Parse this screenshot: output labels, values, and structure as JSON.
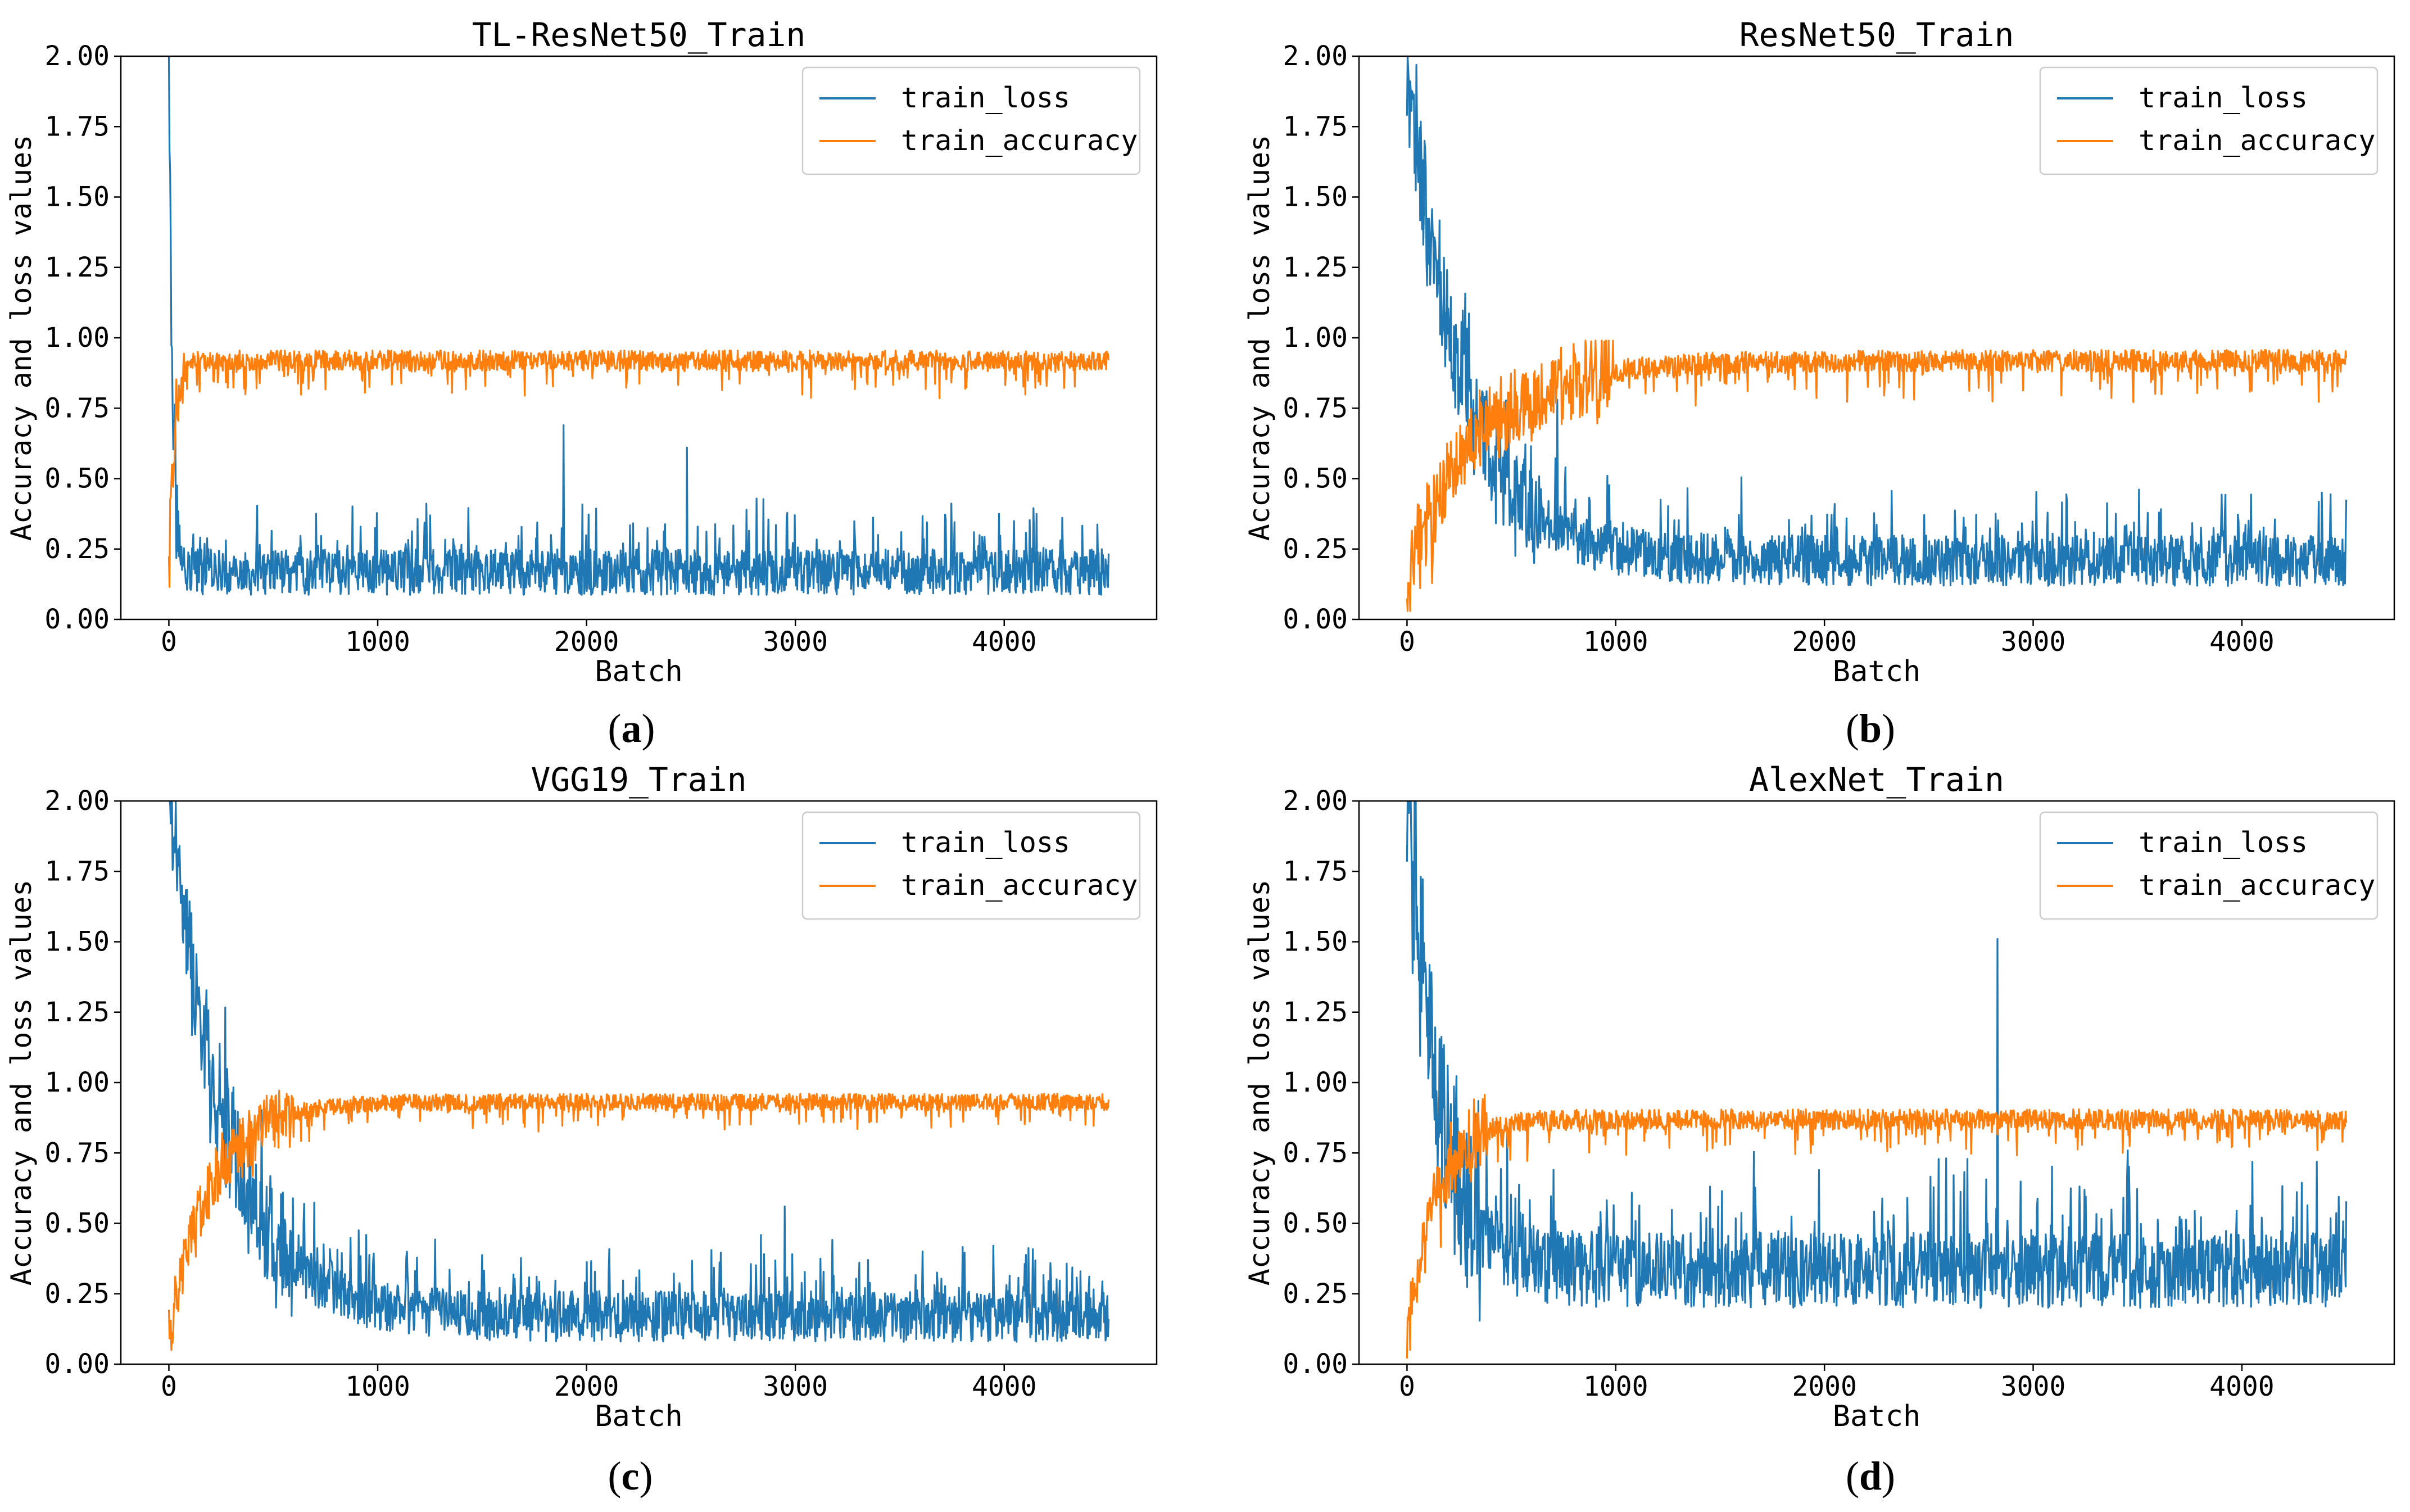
{
  "chart_data": [
    {
      "id": "a",
      "type": "line",
      "title": "TL-ResNet50_Train",
      "caption": "a",
      "xlabel": "Batch",
      "ylabel": "Accuracy and loss values",
      "xlim": [
        -230,
        4730
      ],
      "ylim": [
        0,
        2.0
      ],
      "xticks": [
        0,
        1000,
        2000,
        3000,
        4000
      ],
      "yticks": [
        0.0,
        0.25,
        0.5,
        0.75,
        1.0,
        1.25,
        1.5,
        1.75,
        2.0
      ],
      "legend_position": "top-right",
      "series": [
        {
          "name": "train_loss",
          "color": "#1f77b4",
          "decay_start": 2.0,
          "steady": 0.16,
          "decay_batches": 18,
          "noise": 0.18,
          "clip": [
            0.02,
            2.0
          ]
        },
        {
          "name": "train_accuracy",
          "color": "#ff7f0e",
          "rise_start": 0.15,
          "steady": 0.93,
          "rise_batches": 25,
          "noise": 0.12,
          "clip": [
            0.05,
            0.99
          ]
        }
      ],
      "spikes": [
        {
          "series": "train_loss",
          "x": 1890,
          "y": 0.69
        },
        {
          "series": "train_loss",
          "x": 2480,
          "y": 0.61
        }
      ]
    },
    {
      "id": "b",
      "type": "line",
      "title": "ResNet50_Train",
      "caption": "b",
      "xlabel": "Batch",
      "ylabel": "Accuracy and loss values",
      "xlim": [
        -230,
        4730
      ],
      "ylim": [
        0,
        2.0
      ],
      "xticks": [
        0,
        1000,
        2000,
        3000,
        4000
      ],
      "yticks": [
        0.0,
        0.25,
        0.5,
        0.75,
        1.0,
        1.25,
        1.5,
        1.75,
        2.0
      ],
      "legend_position": "top-right",
      "series": [
        {
          "name": "train_loss",
          "color": "#1f77b4",
          "decay_start": 2.0,
          "steady": 0.2,
          "decay_batches": 260,
          "noise": 0.2,
          "clip": [
            0.02,
            2.0
          ]
        },
        {
          "name": "train_accuracy",
          "color": "#ff7f0e",
          "rise_start": 0.15,
          "steady": 0.93,
          "rise_batches": 330,
          "noise": 0.13,
          "clip": [
            0.03,
            0.99
          ]
        }
      ],
      "spikes": [
        {
          "series": "train_loss",
          "x": 720,
          "y": 0.78
        }
      ]
    },
    {
      "id": "c",
      "type": "line",
      "title": "VGG19_Train",
      "caption": "c",
      "xlabel": "Batch",
      "ylabel": "Accuracy and loss values",
      "xlim": [
        -230,
        4730
      ],
      "ylim": [
        0,
        2.0
      ],
      "xticks": [
        0,
        1000,
        2000,
        3000,
        4000
      ],
      "yticks": [
        0.0,
        0.25,
        0.5,
        0.75,
        1.0,
        1.25,
        1.5,
        1.75,
        2.0
      ],
      "legend_position": "top-right",
      "series": [
        {
          "name": "train_loss",
          "color": "#1f77b4",
          "decay_start": 2.0,
          "steady": 0.16,
          "decay_batches": 260,
          "noise": 0.2,
          "clip": [
            0.02,
            2.0
          ]
        },
        {
          "name": "train_accuracy",
          "color": "#ff7f0e",
          "rise_start": 0.1,
          "steady": 0.94,
          "rise_batches": 200,
          "noise": 0.1,
          "clip": [
            0.05,
            0.99
          ]
        }
      ],
      "spikes": [
        {
          "series": "train_loss",
          "x": 2950,
          "y": 0.56
        }
      ]
    },
    {
      "id": "d",
      "type": "line",
      "title": "AlexNet_Train",
      "caption": "d",
      "xlabel": "Batch",
      "ylabel": "Accuracy and loss values",
      "xlim": [
        -230,
        4730
      ],
      "ylim": [
        0,
        2.0
      ],
      "xticks": [
        0,
        1000,
        2000,
        3000,
        4000
      ],
      "yticks": [
        0.0,
        0.25,
        0.5,
        0.75,
        1.0,
        1.25,
        1.5,
        1.75,
        2.0
      ],
      "legend_position": "top-right",
      "series": [
        {
          "name": "train_loss",
          "color": "#1f77b4",
          "decay_start": 2.0,
          "steady": 0.32,
          "decay_batches": 140,
          "noise": 0.3,
          "clip": [
            0.03,
            2.0
          ]
        },
        {
          "name": "train_accuracy",
          "color": "#ff7f0e",
          "rise_start": 0.1,
          "steady": 0.88,
          "rise_batches": 130,
          "noise": 0.12,
          "clip": [
            0.02,
            0.99
          ]
        }
      ],
      "spikes": [
        {
          "series": "train_loss",
          "x": 2830,
          "y": 1.51
        }
      ]
    }
  ]
}
